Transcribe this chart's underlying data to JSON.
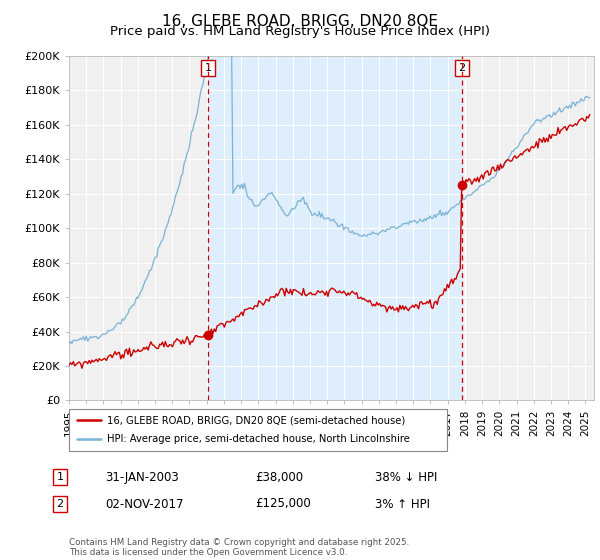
{
  "title": "16, GLEBE ROAD, BRIGG, DN20 8QE",
  "subtitle": "Price paid vs. HM Land Registry's House Price Index (HPI)",
  "ylim": [
    0,
    200000
  ],
  "yticks": [
    0,
    20000,
    40000,
    60000,
    80000,
    100000,
    120000,
    140000,
    160000,
    180000,
    200000
  ],
  "ytick_labels": [
    "£0",
    "£20K",
    "£40K",
    "£60K",
    "£80K",
    "£100K",
    "£120K",
    "£140K",
    "£160K",
    "£180K",
    "£200K"
  ],
  "sale1_date_num": 2003.08,
  "sale1_price": 38000,
  "sale2_date_num": 2017.84,
  "sale2_price": 125000,
  "hpi_color": "#7ab3d4",
  "price_color": "#cc0000",
  "bg_fill_color": "#ddeeff",
  "vline_color": "#cc0000",
  "legend_entry1": "16, GLEBE ROAD, BRIGG, DN20 8QE (semi-detached house)",
  "legend_entry2": "HPI: Average price, semi-detached house, North Lincolnshire",
  "footnote": "Contains HM Land Registry data © Crown copyright and database right 2025.\nThis data is licensed under the Open Government Licence v3.0.",
  "title_fontsize": 11,
  "subtitle_fontsize": 9.5,
  "tick_fontsize": 8,
  "label_fontsize": 8
}
